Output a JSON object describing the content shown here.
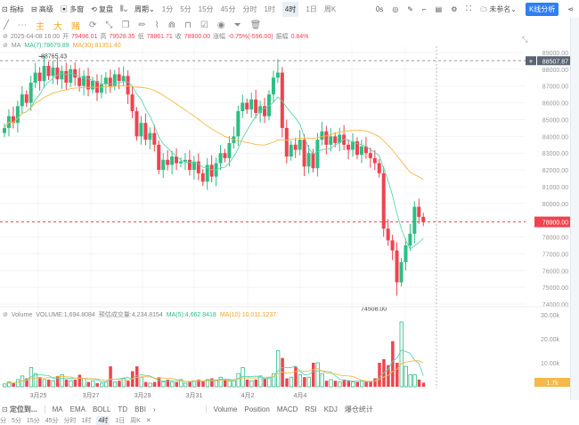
{
  "toolbar": {
    "items": [
      "指标",
      "高级",
      "多窗",
      "复盘"
    ],
    "period": "周期",
    "timeframes": [
      "1分",
      "5分",
      "15分",
      "45分",
      "分时",
      "1时",
      "4时",
      "1日",
      "周K"
    ],
    "selected_tf": "4时",
    "countdown": "0s",
    "account": "未参名",
    "analysis_button": "K线分析"
  },
  "drawing_toolbar": {
    "labels": [
      "主",
      "大",
      "赌"
    ]
  },
  "info": {
    "datetime": "2025-04-08 16:00",
    "open_label": "开",
    "open": "79496.01",
    "high_label": "高",
    "high": "79528.35",
    "low_label": "低",
    "low": "78861.71",
    "close_label": "收",
    "close": "78900.00",
    "change_label": "涨幅",
    "change": "-0.75%(-596.00)",
    "amp_label": "振幅",
    "amp": "0.84%"
  },
  "ma_info": {
    "label": "MA",
    "ma7": "MA(7):78679.89",
    "ma30": "MA(30):81351.40"
  },
  "volume_info": {
    "label": "Volume",
    "volume": "VOLUME:1,694.8084",
    "est": "预估成交量:4,234.8154",
    "ma5": "MA(5):4,662.8418",
    "ma10": "MA(10):10,011.1237"
  },
  "price_axis": {
    "ticks": [
      "89000.00",
      "88000.00",
      "87000.00",
      "86000.00",
      "85000.00",
      "84000.00",
      "83000.00",
      "82000.00",
      "81000.00",
      "80000.00",
      "78000.00",
      "77000.00",
      "76000.00",
      "75000.00",
      "74000.00"
    ],
    "crosshair_price": "88507.87",
    "last_price": "78900.00"
  },
  "volume_axis": {
    "ticks": [
      "30.00k",
      "20.00k",
      "10.00k"
    ],
    "last_volume": "1.7k"
  },
  "date_axis": [
    "3月25",
    "3月27",
    "3月29",
    "3月31",
    "4月2",
    "4月4"
  ],
  "annotations": {
    "high": "88765.43",
    "low": "74508.00"
  },
  "bottom_bar": {
    "locate": "定位到...",
    "main_indicators": [
      "MA",
      "EMA",
      "BOLL",
      "TD",
      "BBI"
    ],
    "sub_indicators": [
      "Volume",
      "Position",
      "MACD",
      "RSI",
      "KDJ",
      "爆仓统计"
    ]
  },
  "bottom_timeframes": {
    "items": [
      "分",
      "5分",
      "15分",
      "45分",
      "分时",
      "1时",
      "4时",
      "1日",
      "周K"
    ],
    "selected": "4时"
  },
  "colors": {
    "up": "#2ebd85",
    "down": "#f0434f",
    "ma7": "#5fd3b0",
    "ma30": "#f5b84a",
    "accent": "#2f7ef5"
  },
  "chart_data": {
    "type": "candlestick",
    "ylim": [
      74000,
      89000
    ],
    "closes": [
      84500,
      85200,
      84800,
      85800,
      86500,
      86000,
      87200,
      87800,
      87300,
      88200,
      87600,
      88100,
      87400,
      87900,
      87200,
      88000,
      87500,
      87000,
      87600,
      86800,
      87300,
      86600,
      87100,
      87500,
      87000,
      87700,
      87300,
      87600,
      86500,
      85500,
      84000,
      84800,
      83800,
      84200,
      83500,
      82000,
      82600,
      82300,
      82800,
      82400,
      82500,
      82600,
      82000,
      82500,
      81800,
      81300,
      82300,
      81600,
      82400,
      83000,
      82700,
      83600,
      84000,
      85500,
      86000,
      85600,
      86200,
      85400,
      85800,
      85200,
      86500,
      87500,
      87800,
      84500,
      82800,
      83500,
      83200,
      83800,
      82200,
      83000,
      82100,
      83800,
      84300,
      83500,
      84000,
      83600,
      84100,
      83500,
      83200,
      83700,
      82900,
      83400,
      83000,
      82700,
      82400,
      81800,
      78500,
      77800,
      77200,
      75300,
      76500,
      77500,
      78200,
      79800,
      79200,
      78900
    ],
    "volumes_k": [
      1.2,
      2,
      1.5,
      3,
      4.5,
      3.5,
      8,
      5.5,
      4,
      3,
      3,
      2.5,
      4.5,
      5,
      3,
      2.5,
      3,
      5,
      3.5,
      2,
      2.5,
      1.5,
      1.5,
      2,
      8.5,
      2,
      2.5,
      3.5,
      2.5,
      6.5,
      8.5,
      4,
      2,
      1.5,
      2,
      4,
      2,
      3,
      2,
      2,
      3,
      1.5,
      2,
      2.5,
      3,
      2.5,
      3,
      3.5,
      2.5,
      4,
      3,
      2.5,
      2.5,
      5.5,
      8,
      3,
      2.5,
      3,
      4.5,
      3.5,
      4,
      5.5,
      15,
      12,
      3.5,
      4,
      8.5,
      5,
      4,
      4,
      10,
      10,
      5.5,
      2.5,
      3,
      2.5,
      2,
      3,
      2.5,
      2,
      2,
      2.5,
      2,
      2,
      3.5,
      10,
      11.5,
      9,
      19,
      10,
      27,
      8.5,
      5,
      5,
      3,
      1.7
    ]
  }
}
